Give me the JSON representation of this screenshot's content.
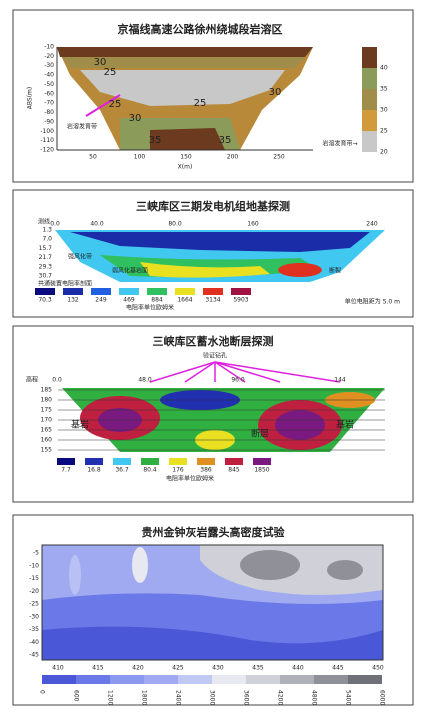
{
  "panels": [
    {
      "title": "京福线高速公路徐州绕城段岩溶区",
      "y_label": "ABS(m)",
      "x_label": "X(m)",
      "y_ticks": [
        "-10",
        "-20",
        "-30",
        "-40",
        "-50",
        "-60",
        "-70",
        "-80",
        "-90",
        "-100",
        "-110",
        "-120"
      ],
      "x_ticks": [
        "50",
        "100",
        "150",
        "200",
        "250"
      ],
      "contour_labels": [
        "30",
        "25",
        "25",
        "25",
        "30",
        "30",
        "35",
        "35"
      ],
      "annotations": [
        "岩溶发育带",
        "岩溶发育带→"
      ],
      "colorbar": [
        "40",
        "35",
        "30",
        "25",
        "20"
      ]
    },
    {
      "title": "三峡库区三期发电机组地基探测",
      "top_label": "测线",
      "top_ticks": [
        "0.0",
        "40.0",
        "80.0",
        "160",
        "240"
      ],
      "y_ticks": [
        "1.3",
        "7.0",
        "15.7",
        "21.7",
        "29.3",
        "30.7"
      ],
      "annotations": [
        "强风化带",
        "弱风化基岩面",
        "断裂"
      ],
      "legend_title": "共通装置电阻率剖面",
      "legend": [
        "70.3",
        "132",
        "249",
        "469",
        "884",
        "1664",
        "3134",
        "5903"
      ],
      "legend_unit": "电阻率单位欧姆米",
      "spacing_note": "单位电阻距为 5.0 m"
    },
    {
      "title": "三峡库区蓄水池断层探测",
      "drill_label": "验证钻孔",
      "top_label": "高程",
      "top_ticks": [
        "0.0",
        "48.0",
        "96.0",
        "144"
      ],
      "y_ticks": [
        "185",
        "180",
        "175",
        "170",
        "165",
        "160",
        "155"
      ],
      "annotations": [
        "基岩",
        "断层",
        "基岩"
      ],
      "legend": [
        "7.7",
        "16.8",
        "36.7",
        "80.4",
        "176",
        "386",
        "845",
        "1850"
      ],
      "legend_unit": "电阻率单位欧姆米"
    },
    {
      "title": "贵州金钟灰岩露头高密度试验",
      "y_ticks": [
        "-5",
        "-10",
        "-15",
        "-20",
        "-25",
        "-30",
        "-35",
        "-40",
        "-45"
      ],
      "x_ticks": [
        "410",
        "415",
        "420",
        "425",
        "430",
        "435",
        "440",
        "445",
        "450"
      ],
      "colorbar": [
        "0",
        "600",
        "1200",
        "1800",
        "2400",
        "3000",
        "3600",
        "4200",
        "4800",
        "5400",
        "6000"
      ]
    }
  ]
}
